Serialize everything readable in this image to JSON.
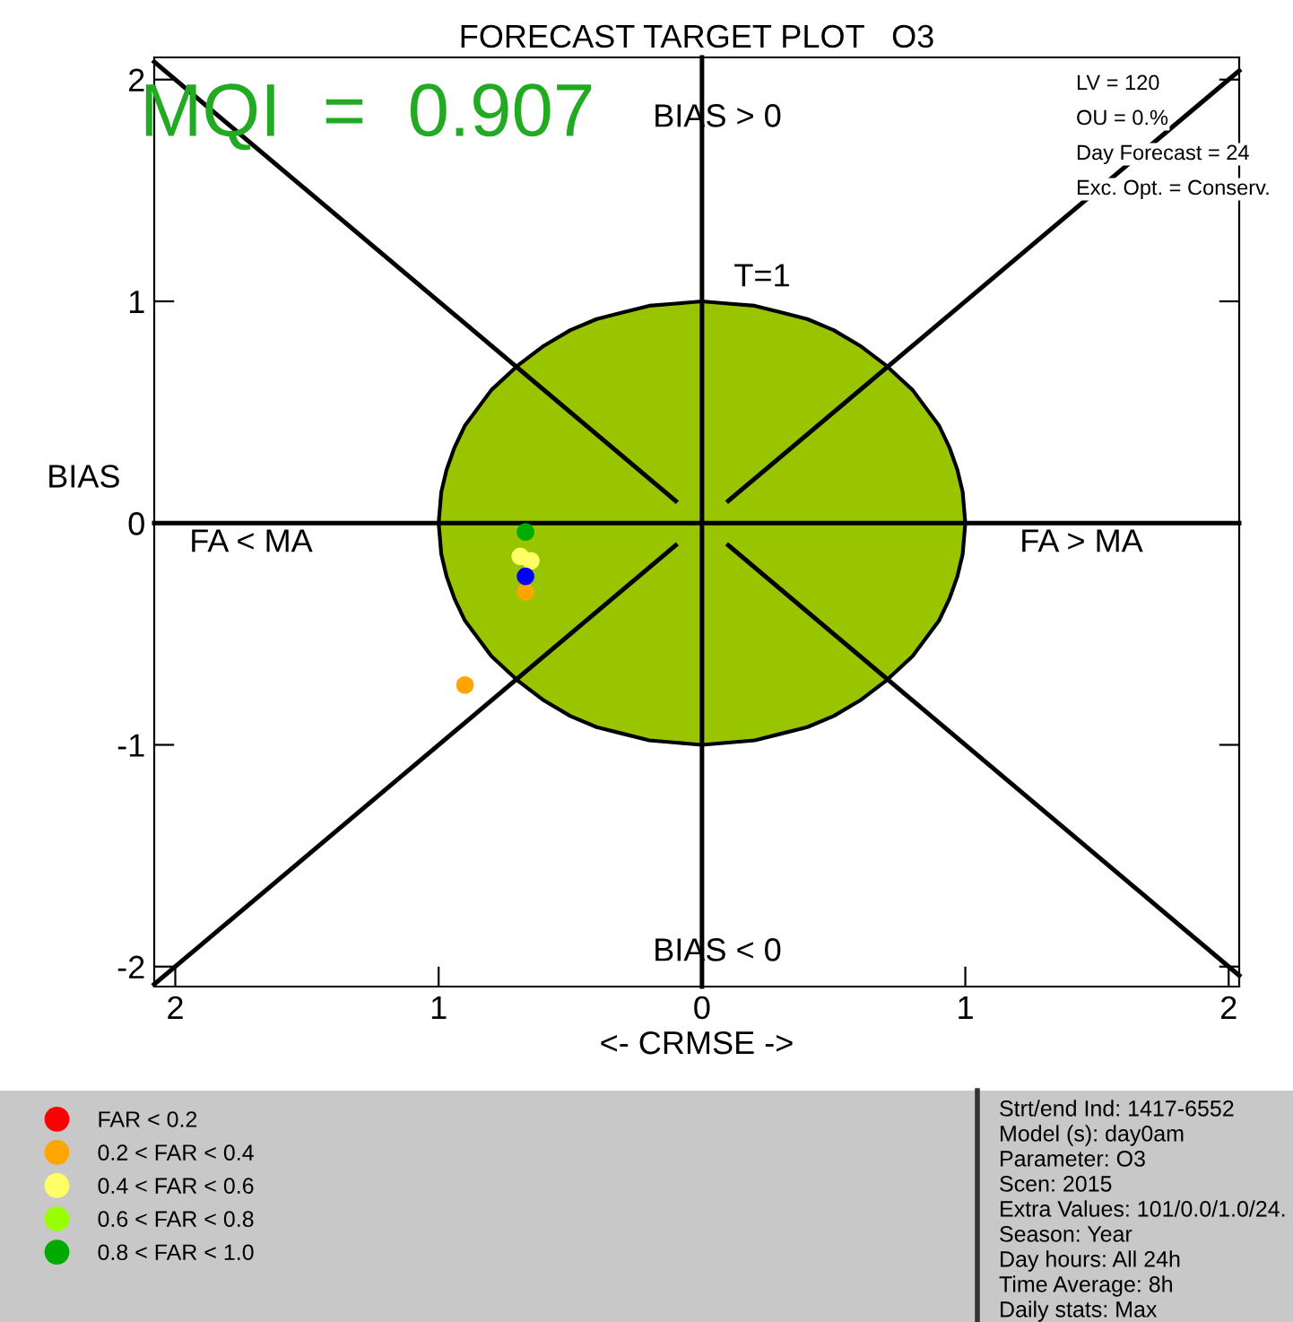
{
  "chart_data": {
    "type": "scatter",
    "title": "FORECAST TARGET PLOT   O3",
    "xlabel": "<- CRMSE ->",
    "ylabel": "BIAS",
    "xlim": [
      -2.08,
      2.04
    ],
    "ylim": [
      -2.09,
      2.1
    ],
    "xticks": [
      {
        "value": -2,
        "label": "2"
      },
      {
        "value": -1,
        "label": "1"
      },
      0,
      1,
      2
    ],
    "yticks": [
      -2,
      -1,
      0,
      1,
      2
    ],
    "grid": false,
    "legend": "bottom",
    "marker": "circle",
    "series": [
      {
        "type": "area",
        "marker": "none",
        "color": "#99c400",
        "x": [
          -1,
          -0.99,
          -0.97,
          -0.94,
          -0.9,
          -0.8,
          -0.7,
          -0.6,
          -0.5,
          -0.4,
          -0.3,
          -0.2,
          -0.1,
          0,
          0.1,
          0.2,
          0.3,
          0.4,
          0.5,
          0.6,
          0.7,
          0.8,
          0.9,
          0.94,
          0.97,
          0.99,
          1
        ],
        "values": [
          0,
          0.14,
          0.24,
          0.34,
          0.44,
          0.6,
          0.71,
          0.8,
          0.87,
          0.92,
          0.95,
          0.98,
          0.99,
          1,
          0.99,
          0.98,
          0.95,
          0.92,
          0.87,
          0.8,
          0.71,
          0.6,
          0.44,
          0.34,
          0.24,
          0.14,
          0
        ]
      },
      {
        "type": "area",
        "marker": "none",
        "color": "#99c400",
        "x": [
          -1,
          -0.99,
          -0.97,
          -0.94,
          -0.9,
          -0.8,
          -0.7,
          -0.6,
          -0.5,
          -0.4,
          -0.3,
          -0.2,
          -0.1,
          0,
          0.1,
          0.2,
          0.3,
          0.4,
          0.5,
          0.6,
          0.7,
          0.8,
          0.9,
          0.94,
          0.97,
          0.99,
          1
        ],
        "values": [
          0,
          -0.14,
          -0.24,
          -0.34,
          -0.44,
          -0.6,
          -0.71,
          -0.8,
          -0.87,
          -0.92,
          -0.95,
          -0.98,
          -0.99,
          -1,
          -0.99,
          -0.98,
          -0.95,
          -0.92,
          -0.87,
          -0.8,
          -0.71,
          -0.6,
          -0.44,
          -0.34,
          -0.24,
          -0.14,
          0
        ]
      },
      {
        "name": "FAR < 0.2",
        "color": "#ff0000"
      },
      {
        "name": "0.2 < FAR < 0.4",
        "color": "#ffa500",
        "x": [
          -0.67,
          -0.9
        ],
        "values": [
          -0.31,
          -0.73
        ]
      },
      {
        "name": "0.4 < FAR < 0.6",
        "color": "#ffff66",
        "x": [
          -0.69,
          -0.65
        ],
        "values": [
          -0.15,
          -0.17
        ]
      },
      {
        "name": "0.6 < FAR < 0.8",
        "color": "#99ff00"
      },
      {
        "name": "0.8 < FAR < 1.0",
        "color": "#00aa00",
        "x": [
          -0.67
        ],
        "values": [
          -0.04
        ]
      },
      {
        "color": "#0000ff",
        "x": [
          -0.67
        ],
        "values": [
          -0.24
        ]
      },
      {
        "type": "line",
        "marker": "none",
        "color": "#000000",
        "x": [
          0,
          0
        ],
        "values": [
          -2.09,
          2.1
        ]
      },
      {
        "type": "line",
        "marker": "none",
        "color": "#000000",
        "x": [
          -2.08,
          2.04
        ],
        "values": [
          0,
          0
        ]
      },
      {
        "type": "line",
        "marker": "none",
        "color": "#000000",
        "x": [
          -2.08,
          -0.1
        ],
        "values": [
          2.08,
          0.1
        ]
      },
      {
        "type": "line",
        "marker": "none",
        "color": "#000000",
        "x": [
          -2.08,
          -0.1
        ],
        "values": [
          -2.08,
          -0.1
        ]
      },
      {
        "type": "line",
        "marker": "none",
        "color": "#000000",
        "x": [
          0.1,
          2.04
        ],
        "values": [
          0.1,
          2.04
        ]
      },
      {
        "type": "line",
        "marker": "none",
        "color": "#000000",
        "x": [
          0.1,
          2.04
        ],
        "values": [
          -0.1,
          -2.04
        ]
      }
    ],
    "annotations": [
      "MQI  =  0.907",
      "BIAS > 0",
      "T=1",
      "FA < MA",
      "FA > MA",
      "BIAS < 0",
      "LV = 120",
      "OU = 0.%",
      "Day Forecast = 24",
      "Exc. Opt. = Conserv.",
      "Strt/end Ind: 1417-6552",
      "Model (s): day0am",
      "Parameter: O3",
      "Scen: 2015",
      "Extra Values: 101/0.0/1.0/24.",
      "Season: Year",
      "Day hours: All 24h",
      "Time Average: 8h",
      "Daily stats: Max"
    ]
  }
}
